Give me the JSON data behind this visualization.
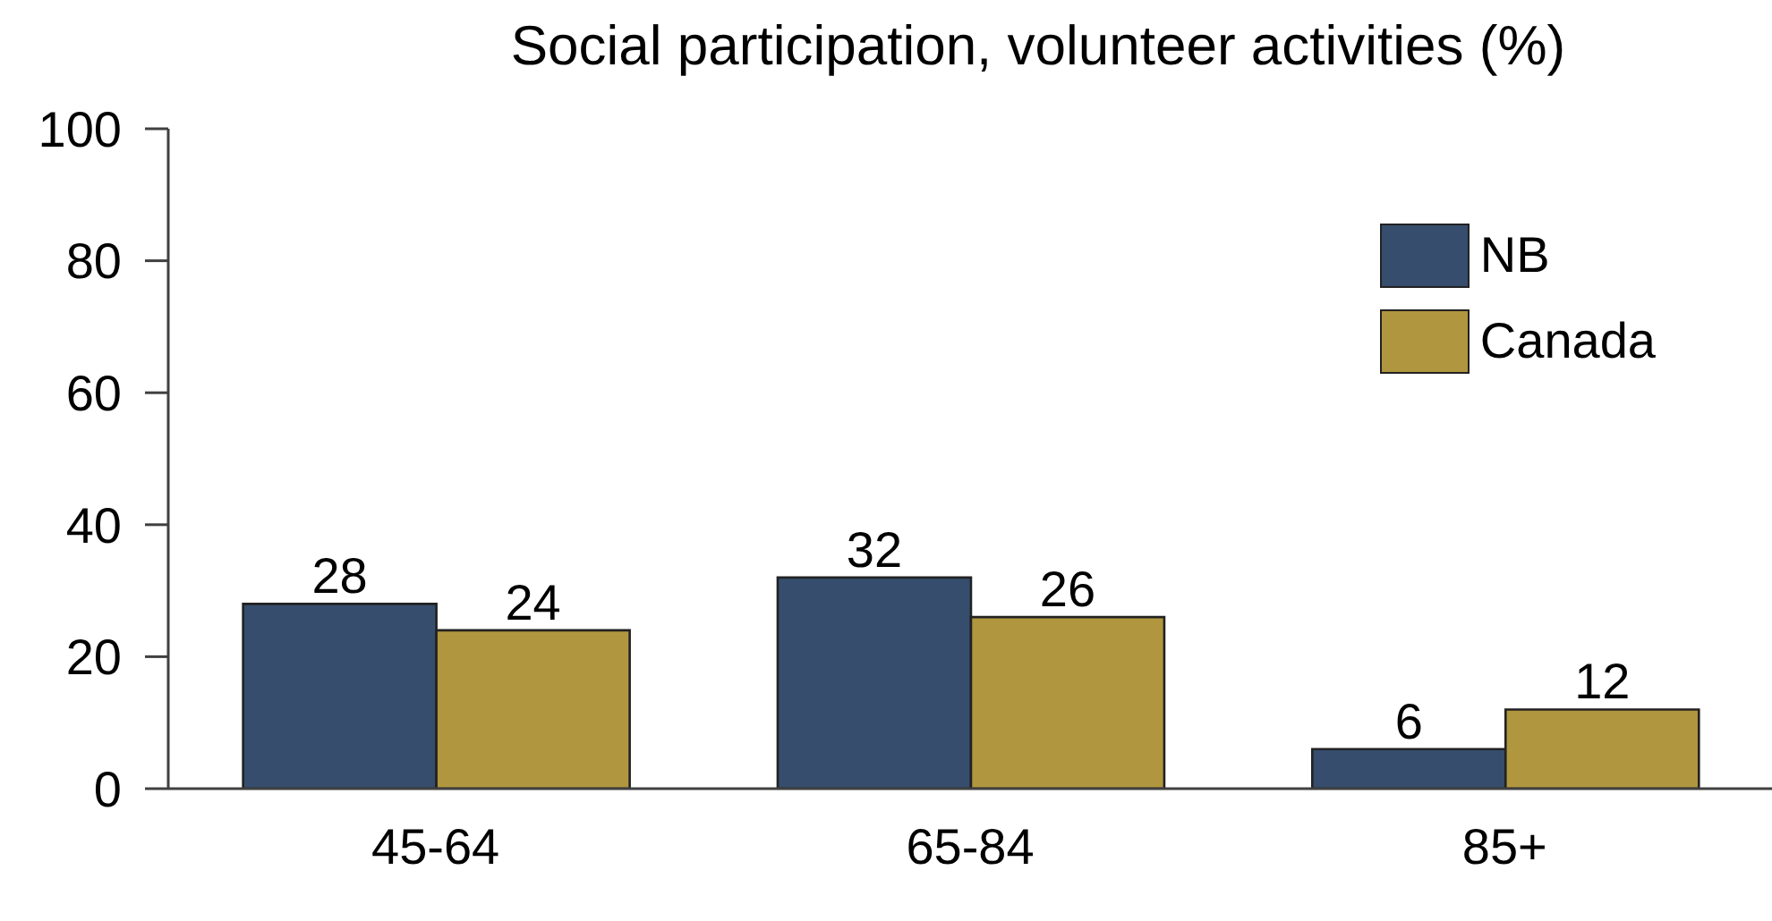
{
  "chart_data": {
    "type": "bar",
    "title": "Social participation, volunteer activities (%)",
    "categories": [
      "45-64",
      "65-84",
      "85+"
    ],
    "series": [
      {
        "name": "NB",
        "color": "#364d6e",
        "values": [
          28,
          32,
          6
        ]
      },
      {
        "name": "Canada",
        "color": "#b0963e",
        "values": [
          24,
          26,
          12
        ]
      }
    ],
    "ylim": [
      0,
      100
    ],
    "yticks": [
      0,
      20,
      40,
      60,
      80,
      100
    ],
    "legend": "top right",
    "data_labels": true
  }
}
